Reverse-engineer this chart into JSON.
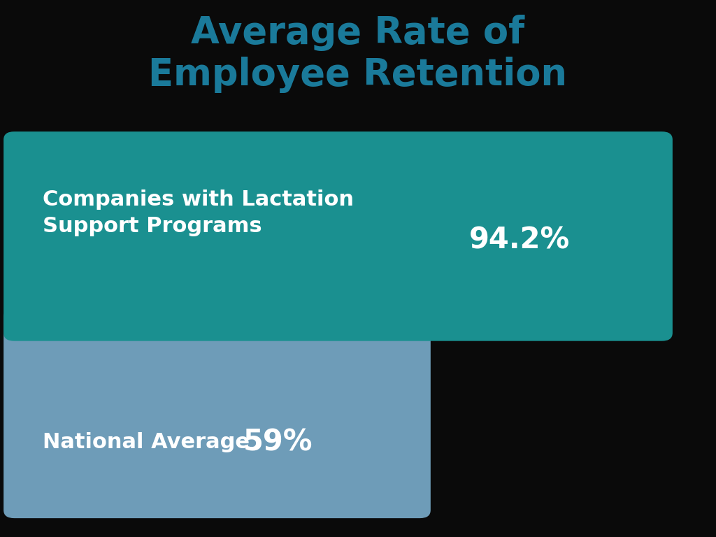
{
  "title": "Average Rate of\nEmployee Retention",
  "title_color": "#1a7a9a",
  "background_color": "#0a0a0a",
  "bars": [
    {
      "label": "Companies with Lactation\nSupport Programs",
      "value": 94.2,
      "value_str": "94.2%",
      "color": "#1a9090"
    },
    {
      "label": "National Average",
      "value": 59.0,
      "value_str": "59%",
      "color": "#6e9cb8"
    }
  ],
  "max_value": 100,
  "label_fontsize": 22,
  "value_fontsize": 30,
  "title_fontsize": 38
}
